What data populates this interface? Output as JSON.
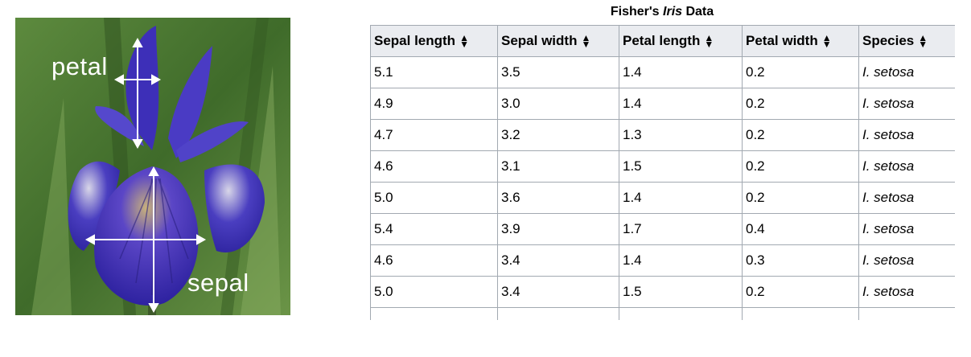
{
  "image": {
    "label_petal": "petal",
    "label_sepal": "sepal"
  },
  "caption": {
    "prefix": "Fisher's ",
    "italic": "Iris",
    "suffix": " Data"
  },
  "table": {
    "headers": [
      "Sepal length",
      "Sepal width",
      "Petal length",
      "Petal width",
      "Species"
    ],
    "rows": [
      [
        "5.1",
        "3.5",
        "1.4",
        "0.2",
        "I. setosa"
      ],
      [
        "4.9",
        "3.0",
        "1.4",
        "0.2",
        "I. setosa"
      ],
      [
        "4.7",
        "3.2",
        "1.3",
        "0.2",
        "I. setosa"
      ],
      [
        "4.6",
        "3.1",
        "1.5",
        "0.2",
        "I. setosa"
      ],
      [
        "5.0",
        "3.6",
        "1.4",
        "0.2",
        "I. setosa"
      ],
      [
        "5.4",
        "3.9",
        "1.7",
        "0.4",
        "I. setosa"
      ],
      [
        "4.6",
        "3.4",
        "1.4",
        "0.3",
        "I. setosa"
      ],
      [
        "5.0",
        "3.4",
        "1.5",
        "0.2",
        "I. setosa"
      ],
      [
        "",
        "",
        "",
        "",
        ""
      ]
    ]
  },
  "icons": {
    "sort": "sort-arrows-icon"
  },
  "colors": {
    "header_bg": "#eaecf0",
    "border": "#a2a9b1",
    "petal_color": "#3b2fb5",
    "foliage": "#4f7a35"
  }
}
